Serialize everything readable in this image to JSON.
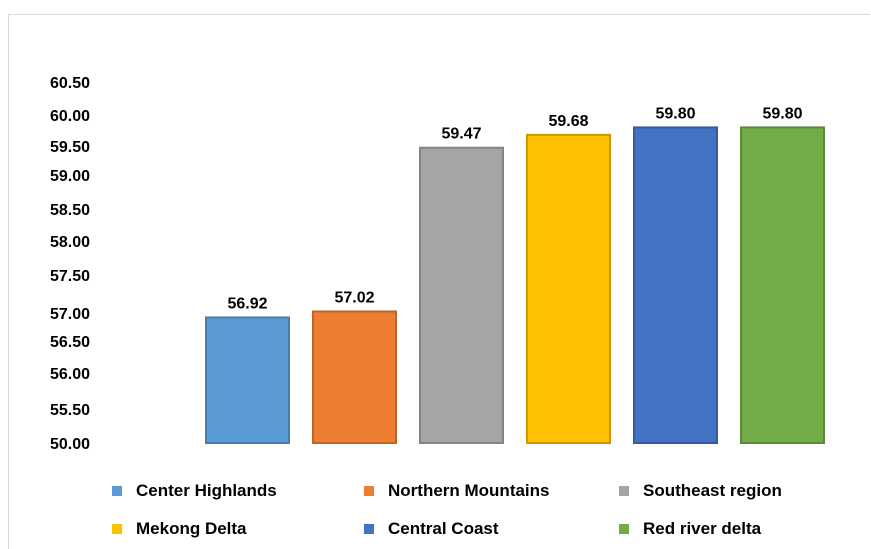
{
  "chart_data": {
    "type": "bar",
    "categories": [
      "Center Highlands",
      "Northern Mountains",
      "Southeast region",
      "Mekong Delta",
      "Central Coast",
      "Red river delta"
    ],
    "values": [
      56.92,
      57.02,
      59.47,
      59.68,
      59.8,
      59.8
    ],
    "data_labels": [
      "56.92",
      "57.02",
      "59.47",
      "59.68",
      "59.80",
      "59.80"
    ],
    "colors": [
      "#5b9bd5",
      "#ed7d31",
      "#a5a5a5",
      "#ffc000",
      "#4472c4",
      "#70ad47"
    ],
    "y_tick_labels": [
      "50.00",
      "55.50",
      "56.00",
      "56.50",
      "57.00",
      "57.50",
      "58.00",
      "58.50",
      "59.00",
      "59.50",
      "60.00",
      "60.50"
    ],
    "ylim": [
      50.0,
      60.5
    ],
    "axis_break": true,
    "grid": false,
    "legend_position": "bottom",
    "title": "",
    "xlabel": "",
    "ylabel": ""
  }
}
